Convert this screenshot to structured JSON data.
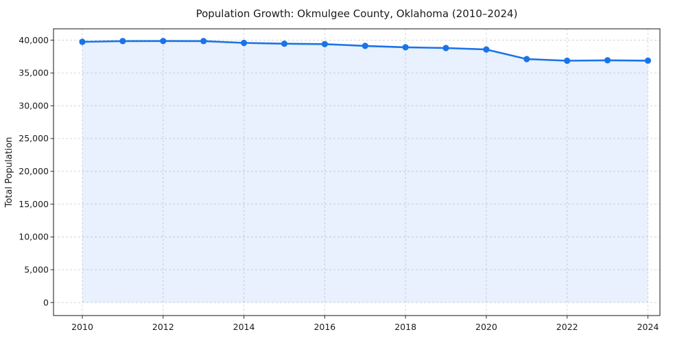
{
  "chart_data": {
    "type": "line",
    "title": "Population Growth: Okmulgee County, Oklahoma (2010–2024)",
    "xlabel": "",
    "ylabel": "Total Population",
    "x": [
      2010,
      2011,
      2012,
      2013,
      2014,
      2015,
      2016,
      2017,
      2018,
      2019,
      2020,
      2021,
      2022,
      2023,
      2024
    ],
    "series": [
      {
        "name": "Total Population",
        "values": [
          39740,
          39850,
          39860,
          39850,
          39580,
          39460,
          39390,
          39120,
          38910,
          38800,
          38580,
          37110,
          36860,
          36930,
          36870
        ]
      }
    ],
    "xticks": [
      2010,
      2012,
      2014,
      2016,
      2018,
      2020,
      2022,
      2024
    ],
    "xtick_labels": [
      "2010",
      "2012",
      "2014",
      "2016",
      "2018",
      "2020",
      "2022",
      "2024"
    ],
    "yticks": [
      0,
      5000,
      10000,
      15000,
      20000,
      25000,
      30000,
      35000,
      40000
    ],
    "ytick_labels": [
      "0",
      "5,000",
      "10,000",
      "15,000",
      "20,000",
      "25,000",
      "30,000",
      "35,000",
      "40,000"
    ],
    "ylim": [
      0,
      40000
    ],
    "grid": true,
    "grid_style": "dashed",
    "legend": false,
    "area_fill": true,
    "marker": "circle",
    "colors": {
      "line": "#1a73e8",
      "marker": "#1a73e8",
      "area_fill": "rgba(26,115,232,0.10)",
      "grid": "#c9c9c9",
      "spine": "#2a2a2a",
      "tick_text": "#1a1a1a",
      "background": "#ffffff"
    }
  }
}
